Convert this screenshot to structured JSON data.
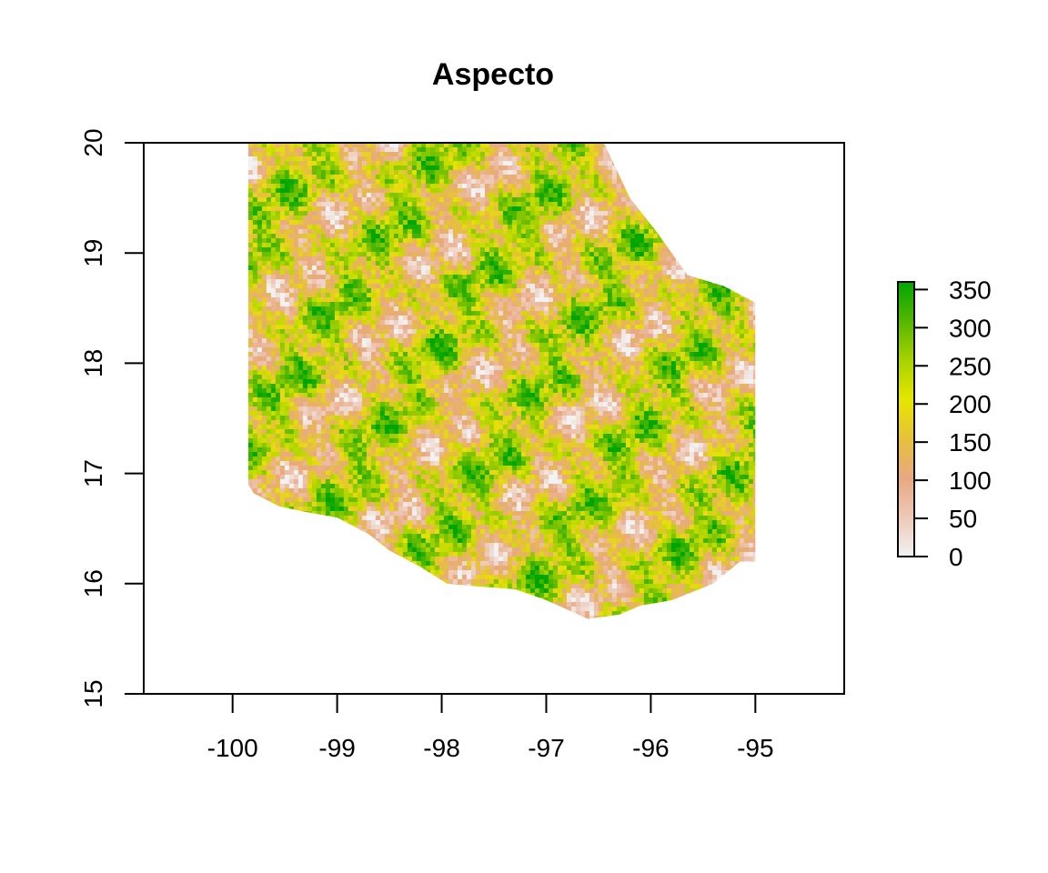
{
  "chart_data": {
    "type": "heatmap",
    "title": "Aspecto",
    "xlabel": "",
    "ylabel": "",
    "xlim": [
      -100.85,
      -94.15
    ],
    "ylim": [
      15,
      20
    ],
    "x_ticks": [
      -100,
      -99,
      -98,
      -97,
      -96,
      -95
    ],
    "x_tick_labels": [
      "-100",
      "-99",
      "-98",
      "-97",
      "-96",
      "-95"
    ],
    "y_ticks": [
      15,
      16,
      17,
      18,
      19,
      20
    ],
    "y_tick_labels": [
      "15",
      "16",
      "17",
      "18",
      "19",
      "20"
    ],
    "grid": false,
    "raster_outline": [
      [
        -99.85,
        20.0
      ],
      [
        -96.45,
        20.0
      ],
      [
        -96.35,
        19.8
      ],
      [
        -96.2,
        19.5
      ],
      [
        -95.95,
        19.2
      ],
      [
        -95.65,
        18.8
      ],
      [
        -95.3,
        18.7
      ],
      [
        -95.0,
        18.55
      ],
      [
        -95.0,
        16.2
      ],
      [
        -95.15,
        16.2
      ],
      [
        -95.4,
        16.0
      ],
      [
        -95.8,
        15.85
      ],
      [
        -96.1,
        15.8
      ],
      [
        -96.3,
        15.72
      ],
      [
        -96.6,
        15.68
      ],
      [
        -97.0,
        15.85
      ],
      [
        -97.3,
        15.95
      ],
      [
        -97.6,
        15.97
      ],
      [
        -97.95,
        16.0
      ],
      [
        -98.2,
        16.15
      ],
      [
        -98.5,
        16.3
      ],
      [
        -98.7,
        16.45
      ],
      [
        -99.0,
        16.6
      ],
      [
        -99.3,
        16.65
      ],
      [
        -99.55,
        16.7
      ],
      [
        -99.8,
        16.82
      ],
      [
        -99.85,
        16.9
      ]
    ],
    "legend": {
      "placement": "right",
      "min": 0,
      "max": 360,
      "ticks": [
        0,
        50,
        100,
        150,
        200,
        250,
        300,
        350
      ],
      "tick_labels": [
        "0",
        "50",
        "100",
        "150",
        "200",
        "250",
        "300",
        "350"
      ],
      "colors": [
        "#f2f2f2",
        "#eec9b7",
        "#e8a881",
        "#e6c13a",
        "#e6e600",
        "#a8d200",
        "#55b700",
        "#00a600"
      ]
    }
  }
}
